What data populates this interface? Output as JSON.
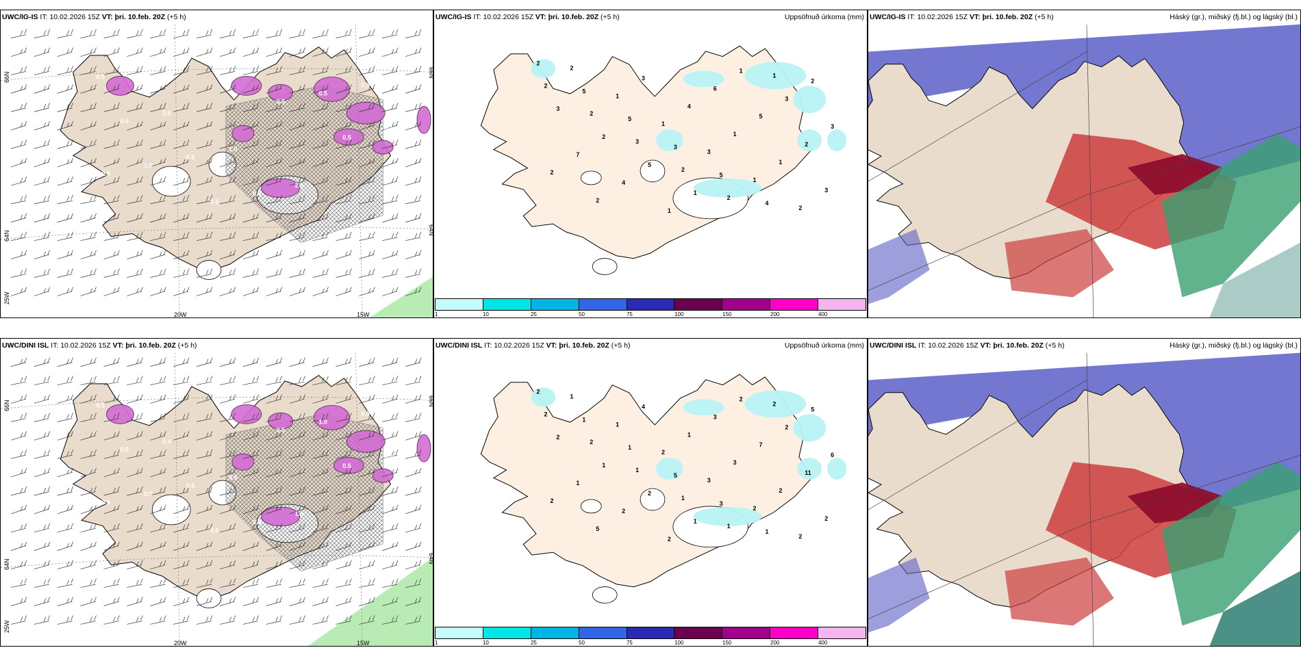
{
  "colors": {
    "land": "#eadccc",
    "precip_light": "#b8f3f5",
    "cloud_high": "#5b5fc7",
    "cloud_mid": "#cc3d3d",
    "cloud_low": "#38a070",
    "hatch": "#555555",
    "wind_green": "#b9ecb4"
  },
  "top_row": {
    "left": {
      "model": "UWC/IG-IS",
      "it_label": "IT:",
      "it_time": "10.02.2026 15Z",
      "vt_label": "VT:",
      "vt_time": "þri. 10.feb. 20Z",
      "lead": "(+5 h)",
      "lat_labels": [
        "66N",
        "64N",
        "66N",
        "64N"
      ],
      "lon_labels": [
        "20W",
        "15W",
        "25W"
      ]
    },
    "middle": {
      "model": "UWC/IG-IS",
      "it_label": "IT:",
      "it_time": "10.02.2026 15Z",
      "vt_label": "VT:",
      "vt_time": "þri. 10.feb. 20Z",
      "lead": "(+5 h)",
      "field_title": "Uppsöfnuð úrkoma (mm)"
    },
    "right": {
      "model": "UWC/IG-IS",
      "it_label": "IT:",
      "it_time": "10.02.2026 15Z",
      "vt_label": "VT:",
      "vt_time": "þri. 10.feb. 20Z",
      "lead": "(+5 h)",
      "field_title": "Háský (gr.), miðský (fj.bl.) og lágský (bl.)"
    }
  },
  "bottom_row": {
    "left": {
      "model": "UWC/DINI ISL",
      "it_label": "IT:",
      "it_time": "10.02.2026 15Z",
      "vt_label": "VT:",
      "vt_time": "þri. 10.feb. 20Z",
      "lead": "(+5 h)",
      "lat_labels": [
        "66N",
        "64N",
        "66N",
        "64N"
      ],
      "lon_labels": [
        "20W",
        "15W",
        "25W"
      ]
    },
    "middle": {
      "model": "UWC/DINI ISL",
      "it_label": "IT:",
      "it_time": "10.02.2026 15Z",
      "vt_label": "VT:",
      "vt_time": "þri. 10.feb. 20Z",
      "lead": "(+5 h)",
      "field_title": "Uppsöfnuð úrkoma (mm)"
    },
    "right": {
      "model": "UWC/DINI ISL",
      "it_label": "IT:",
      "it_time": "10.02.2026 15Z",
      "vt_label": "VT:",
      "vt_time": "þri. 10.feb. 20Z",
      "lead": "(+5 h)",
      "field_title": "Háský (gr.), miðský (fj.bl.) og lágský (bl.)"
    }
  },
  "precip_legend": {
    "colors": [
      "#c4fbfb",
      "#00e6e6",
      "#00b4e6",
      "#3366e6",
      "#2a2ab4",
      "#6a0050",
      "#a0008c",
      "#ff00c8",
      "#f5b4f0"
    ],
    "ticks": [
      "1",
      "10",
      "25",
      "50",
      "75",
      "100",
      "150",
      "200",
      "400"
    ]
  },
  "precip_labels_top": [
    "2",
    "5",
    "5",
    "3",
    "5",
    "4",
    "2",
    "3",
    "2",
    "5",
    "1",
    "1",
    "3",
    "3",
    "7",
    "4",
    "1",
    "6",
    "5",
    "2",
    "2",
    "2",
    "3",
    "4",
    "1",
    "1",
    "3",
    "2",
    "1",
    "1",
    "3",
    "1",
    "2",
    "2",
    "2",
    "3",
    "2",
    "2",
    "1"
  ],
  "precip_labels_bottom": [
    "2",
    "1",
    "1",
    "5",
    "3",
    "1",
    "5",
    "2",
    "1",
    "2",
    "1",
    "2",
    "2",
    "6",
    "1",
    "2",
    "2",
    "3",
    "7",
    "11",
    "2",
    "5",
    "4",
    "1",
    "3",
    "2",
    "2",
    "1",
    "1",
    "2",
    "3",
    "2",
    "2",
    "2",
    "2",
    "1",
    "1",
    "1",
    "2"
  ],
  "snow_labels_top": [
    "0.5",
    "0.6",
    "1.0",
    "2.0",
    "0.5",
    "0.5",
    "0.5",
    "0.6",
    "0.5",
    "0.6",
    "1.0",
    "0.5",
    "0.5",
    "0.5",
    "0.5"
  ],
  "snow_labels_bottom": [
    "0.5",
    "0.4",
    "0.5",
    "1.0",
    "0.5",
    "0.5",
    "0.5",
    "0.5",
    "1.0",
    "0.6",
    "0.5",
    "0.6",
    "0.5",
    "0.5",
    "0.6"
  ]
}
